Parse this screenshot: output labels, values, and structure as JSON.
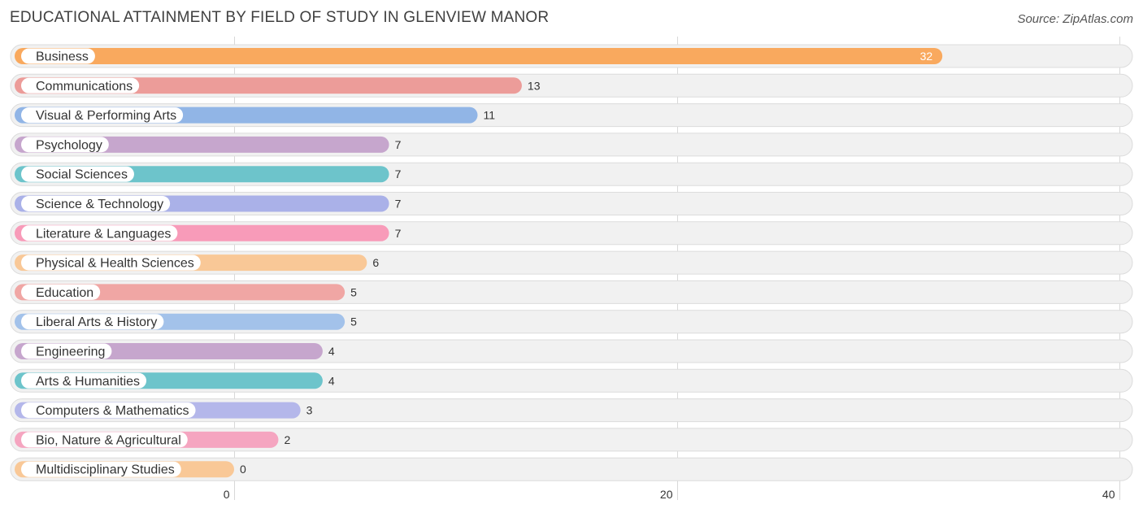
{
  "title": "EDUCATIONAL ATTAINMENT BY FIELD OF STUDY IN GLENVIEW MANOR",
  "source": "Source: ZipAtlas.com",
  "chart_data": {
    "type": "bar",
    "orientation": "horizontal",
    "title": "EDUCATIONAL ATTAINMENT BY FIELD OF STUDY IN GLENVIEW MANOR",
    "xlim": [
      0,
      40
    ],
    "xticks": [
      0,
      20,
      40
    ],
    "grid": true,
    "categories": [
      "Business",
      "Communications",
      "Visual & Performing Arts",
      "Psychology",
      "Social Sciences",
      "Science & Technology",
      "Literature & Languages",
      "Physical & Health Sciences",
      "Education",
      "Liberal Arts & History",
      "Engineering",
      "Arts & Humanities",
      "Computers & Mathematics",
      "Bio, Nature & Agricultural",
      "Multidisciplinary Studies"
    ],
    "values": [
      32,
      13,
      11,
      7,
      7,
      7,
      7,
      6,
      5,
      5,
      4,
      4,
      3,
      2,
      0
    ],
    "colors": [
      "#f9a95e",
      "#ec9c99",
      "#91b5e6",
      "#c6a6cd",
      "#6dc4cb",
      "#aab1e8",
      "#f89bb9",
      "#f9c897",
      "#f0a6a4",
      "#a3c2ea",
      "#c6a6cd",
      "#6dc4cb",
      "#b4b7ea",
      "#f5a5c0",
      "#f9c897"
    ]
  }
}
